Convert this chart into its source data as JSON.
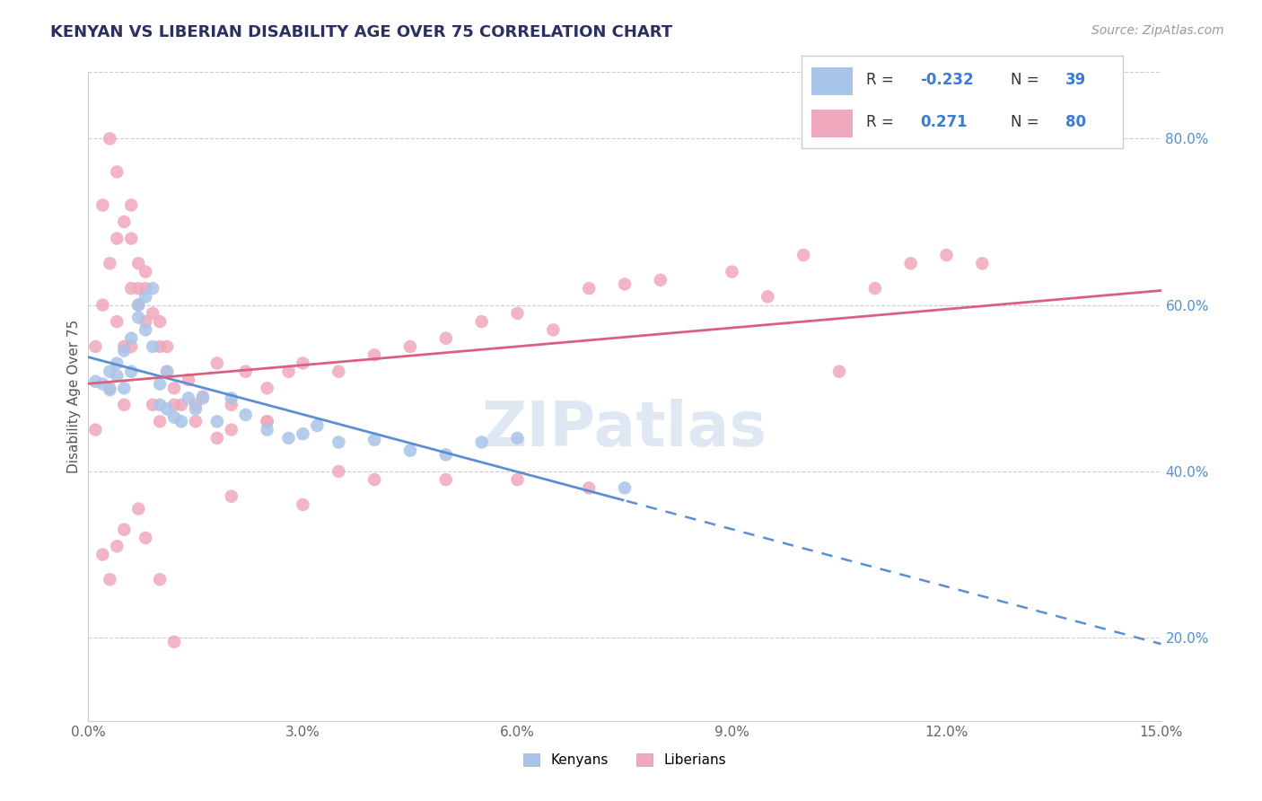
{
  "title": "KENYAN VS LIBERIAN DISABILITY AGE OVER 75 CORRELATION CHART",
  "source": "Source: ZipAtlas.com",
  "ylabel": "Disability Age Over 75",
  "xlim": [
    0.0,
    0.15
  ],
  "ylim": [
    0.1,
    0.88
  ],
  "xticks": [
    0.0,
    0.03,
    0.06,
    0.09,
    0.12,
    0.15
  ],
  "xtick_labels": [
    "0.0%",
    "3.0%",
    "6.0%",
    "9.0%",
    "12.0%",
    "15.0%"
  ],
  "yticks_right": [
    0.2,
    0.4,
    0.6,
    0.8
  ],
  "ytick_labels_right": [
    "20.0%",
    "40.0%",
    "60.0%",
    "80.0%"
  ],
  "kenyan_color": "#a8c4e8",
  "liberian_color": "#f0a8bc",
  "kenyan_line_color": "#5b8fd4",
  "liberian_line_color": "#d96080",
  "watermark": "ZIPatlas",
  "watermark_color": "#c8d8ea",
  "kenyan_x": [
    0.001,
    0.002,
    0.003,
    0.003,
    0.004,
    0.004,
    0.005,
    0.005,
    0.006,
    0.006,
    0.007,
    0.007,
    0.008,
    0.008,
    0.009,
    0.009,
    0.01,
    0.01,
    0.011,
    0.011,
    0.012,
    0.013,
    0.014,
    0.015,
    0.016,
    0.018,
    0.02,
    0.022,
    0.025,
    0.028,
    0.03,
    0.032,
    0.035,
    0.04,
    0.045,
    0.05,
    0.055,
    0.06,
    0.075
  ],
  "kenyan_y": [
    0.508,
    0.505,
    0.52,
    0.498,
    0.515,
    0.53,
    0.5,
    0.545,
    0.52,
    0.56,
    0.6,
    0.585,
    0.61,
    0.57,
    0.55,
    0.62,
    0.505,
    0.48,
    0.52,
    0.475,
    0.465,
    0.46,
    0.488,
    0.475,
    0.488,
    0.46,
    0.488,
    0.468,
    0.45,
    0.44,
    0.445,
    0.455,
    0.435,
    0.438,
    0.425,
    0.42,
    0.435,
    0.44,
    0.38
  ],
  "liberian_x": [
    0.001,
    0.002,
    0.003,
    0.003,
    0.004,
    0.004,
    0.005,
    0.005,
    0.006,
    0.006,
    0.007,
    0.007,
    0.008,
    0.008,
    0.009,
    0.01,
    0.01,
    0.011,
    0.012,
    0.013,
    0.014,
    0.015,
    0.016,
    0.018,
    0.02,
    0.022,
    0.025,
    0.028,
    0.03,
    0.035,
    0.04,
    0.045,
    0.05,
    0.055,
    0.06,
    0.065,
    0.07,
    0.075,
    0.08,
    0.09,
    0.095,
    0.1,
    0.105,
    0.11,
    0.115,
    0.12,
    0.125,
    0.001,
    0.002,
    0.003,
    0.004,
    0.005,
    0.006,
    0.006,
    0.007,
    0.008,
    0.009,
    0.01,
    0.011,
    0.012,
    0.015,
    0.018,
    0.02,
    0.025,
    0.03,
    0.035,
    0.04,
    0.05,
    0.06,
    0.07,
    0.02,
    0.025,
    0.002,
    0.003,
    0.004,
    0.005,
    0.007,
    0.008,
    0.01,
    0.012
  ],
  "liberian_y": [
    0.55,
    0.6,
    0.65,
    0.5,
    0.68,
    0.58,
    0.7,
    0.55,
    0.68,
    0.55,
    0.6,
    0.65,
    0.58,
    0.62,
    0.59,
    0.55,
    0.58,
    0.52,
    0.5,
    0.48,
    0.51,
    0.48,
    0.49,
    0.53,
    0.48,
    0.52,
    0.5,
    0.52,
    0.53,
    0.52,
    0.54,
    0.55,
    0.56,
    0.58,
    0.59,
    0.57,
    0.62,
    0.625,
    0.63,
    0.64,
    0.61,
    0.66,
    0.52,
    0.62,
    0.65,
    0.66,
    0.65,
    0.45,
    0.72,
    0.8,
    0.76,
    0.48,
    0.72,
    0.62,
    0.62,
    0.64,
    0.48,
    0.46,
    0.55,
    0.48,
    0.46,
    0.44,
    0.37,
    0.46,
    0.36,
    0.4,
    0.39,
    0.39,
    0.39,
    0.38,
    0.45,
    0.46,
    0.3,
    0.27,
    0.31,
    0.33,
    0.355,
    0.32,
    0.27,
    0.195
  ]
}
